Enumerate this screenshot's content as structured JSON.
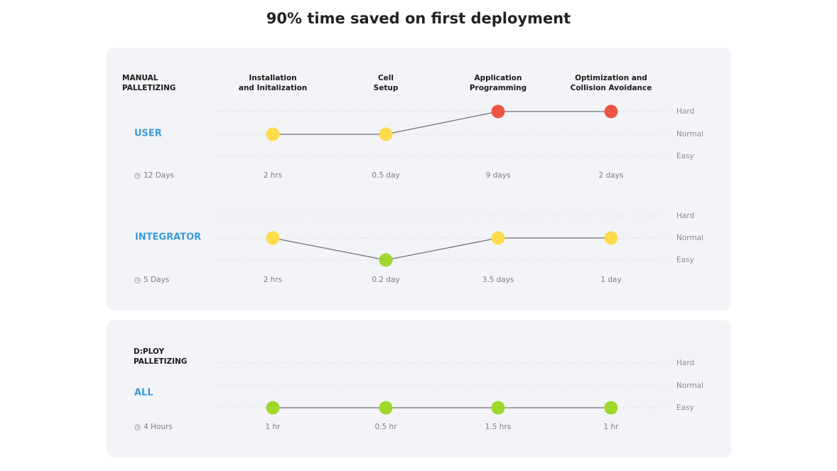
{
  "title": "90% time saved on first deployment",
  "colors": {
    "easy": "#9fd72a",
    "normal": "#fddc4c",
    "hard": "#ec5545",
    "accent": "#3a9ad9"
  },
  "panels": {
    "manual": {
      "label_line1": "MANUAL",
      "label_line2": "PALLETIZING"
    },
    "dploy": {
      "label_line1": "D:PLOY",
      "label_line2": "PALLETIZING"
    }
  },
  "chart_data": {
    "type": "line",
    "categories": [
      "Installation and Initalization",
      "Cell Setup",
      "Application Programming",
      "Optimization and Collision Avoidance"
    ],
    "category_lines": [
      [
        "Installation",
        "and Initalization"
      ],
      [
        "Cell",
        "Setup"
      ],
      [
        "Application",
        "Programming"
      ],
      [
        "Optimization and",
        "Collision Avoidance"
      ]
    ],
    "levels": [
      "Easy",
      "Normal",
      "Hard"
    ],
    "series": [
      {
        "name": "USER",
        "total": "12 Days",
        "values": [
          "Normal",
          "Normal",
          "Hard",
          "Hard"
        ],
        "durations": [
          "2 hrs",
          "0.5 day",
          "9 days",
          "2 days"
        ]
      },
      {
        "name": "INTEGRATOR",
        "total": "5 Days",
        "values": [
          "Normal",
          "Easy",
          "Normal",
          "Normal"
        ],
        "durations": [
          "2 hrs",
          "0.2 day",
          "3.5 days",
          "1 day"
        ]
      },
      {
        "name": "ALL",
        "total": "4 Hours",
        "values": [
          "Easy",
          "Easy",
          "Easy",
          "Easy"
        ],
        "durations": [
          "1 hr",
          "0.5 hr",
          "1.5 hrs",
          "1 hr"
        ]
      }
    ]
  }
}
